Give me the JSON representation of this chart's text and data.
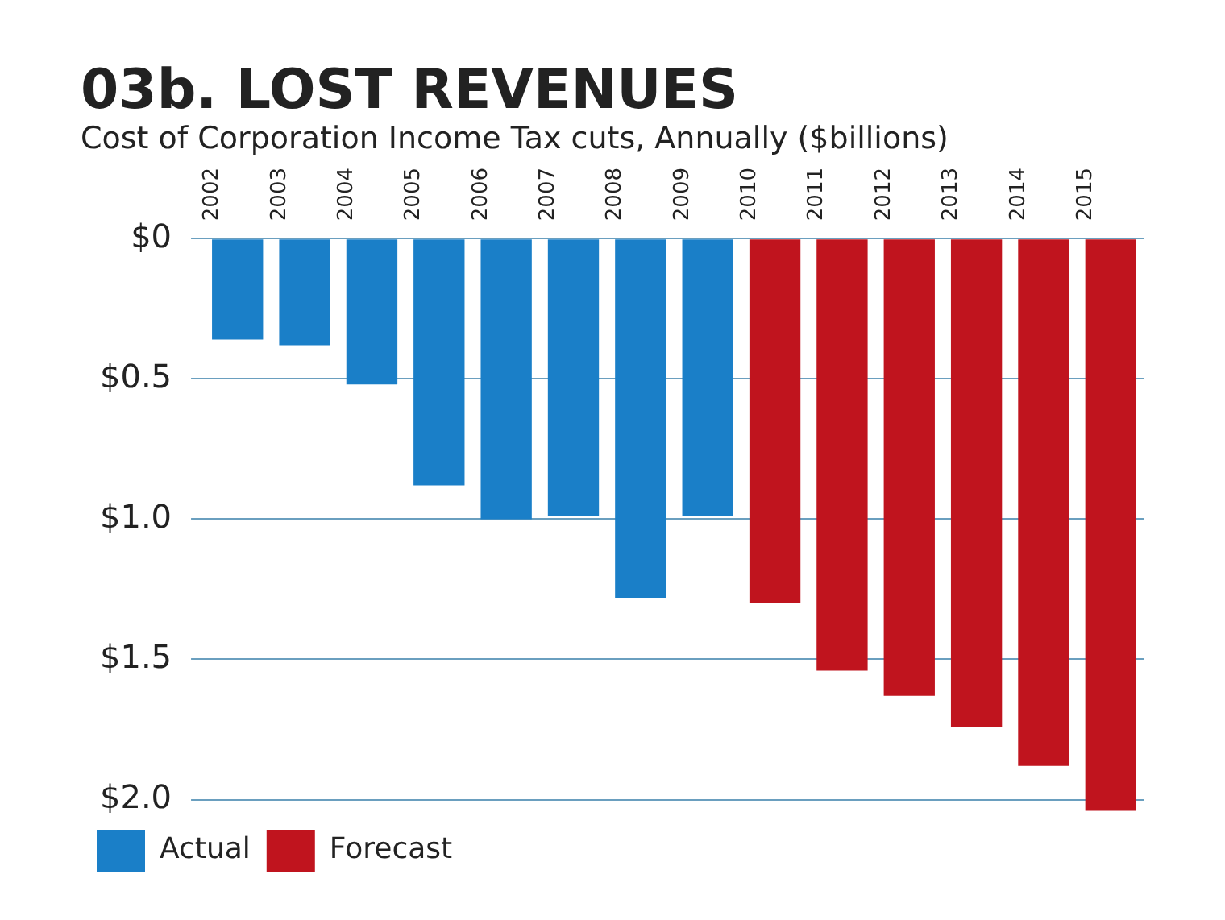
{
  "chart_data": {
    "type": "bar",
    "title": "03b. LOST REVENUES",
    "subtitle": "Cost of Corporation Income Tax cuts, Annually ($billions)",
    "categories": [
      "2002",
      "2003",
      "2004",
      "2005",
      "2006",
      "2007",
      "2008",
      "2009",
      "2010",
      "2011",
      "2012",
      "2013",
      "2014",
      "2015"
    ],
    "series": [
      {
        "name": "Actual",
        "color": "#1a7fc8",
        "values": [
          0.36,
          0.38,
          0.52,
          0.88,
          1.0,
          0.99,
          1.28,
          0.99,
          null,
          null,
          null,
          null,
          null,
          null
        ]
      },
      {
        "name": "Forecast",
        "color": "#c0141e",
        "values": [
          null,
          null,
          null,
          null,
          null,
          null,
          null,
          null,
          1.3,
          1.54,
          1.63,
          1.74,
          1.88,
          2.04
        ]
      }
    ],
    "ylim": [
      2.05,
      0
    ],
    "yticks": [
      {
        "value": 0,
        "label": "$0"
      },
      {
        "value": 0.5,
        "label": "$0.5"
      },
      {
        "value": 1,
        "label": "$1.0"
      },
      {
        "value": 1.5,
        "label": "$1.5"
      },
      {
        "value": 2,
        "label": "$2.0"
      }
    ],
    "grid": "y",
    "legend": "bottom left"
  }
}
